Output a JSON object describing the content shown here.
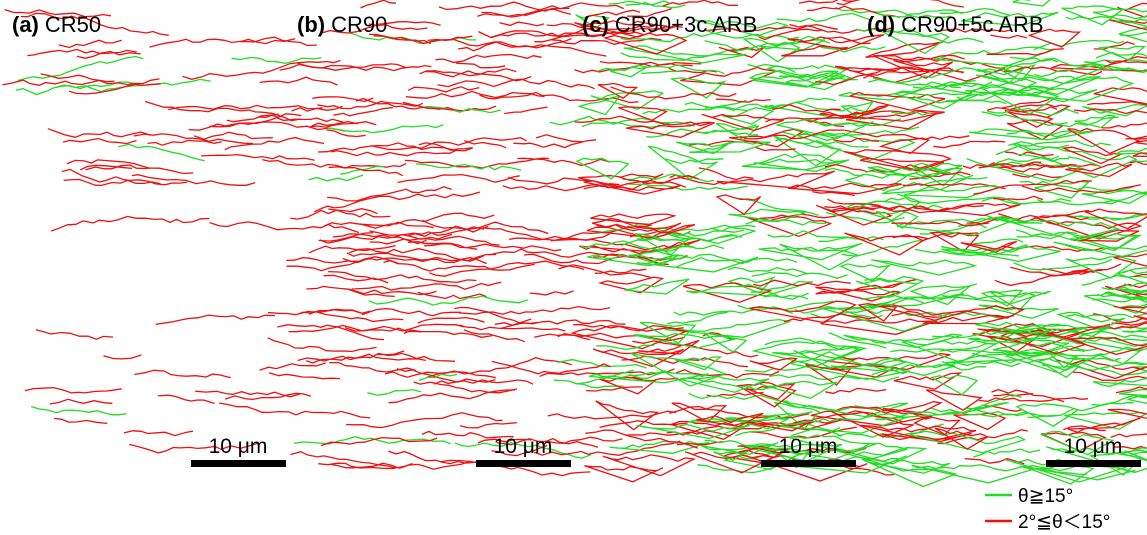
{
  "panels": [
    {
      "letter": "(a)",
      "name": "CR50",
      "scale_bar": "10 μm"
    },
    {
      "letter": "(b)",
      "name": "CR90",
      "scale_bar": "10 μm"
    },
    {
      "letter": "(c)",
      "name": "CR90+3c ARB",
      "scale_bar": "10 μm"
    },
    {
      "letter": "(d)",
      "name": "CR90+5c ARB",
      "scale_bar": "10 μm"
    }
  ],
  "legend": [
    {
      "label": "θ≧15°",
      "color": "#22dd22"
    },
    {
      "label": "2°≦θ＜15°",
      "color": "#ee1111"
    }
  ]
}
